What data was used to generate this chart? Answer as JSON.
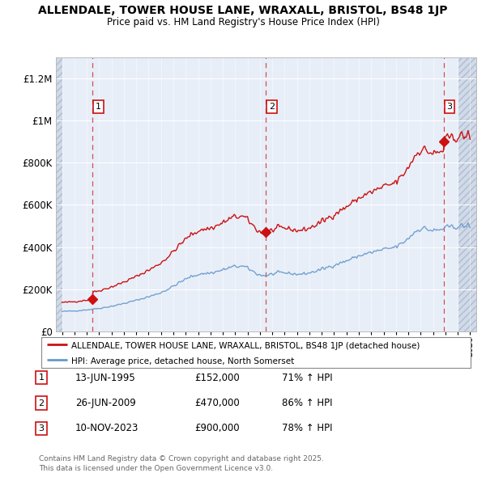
{
  "title": "ALLENDALE, TOWER HOUSE LANE, WRAXALL, BRISTOL, BS48 1JP",
  "subtitle": "Price paid vs. HM Land Registry's House Price Index (HPI)",
  "legend_line1": "ALLENDALE, TOWER HOUSE LANE, WRAXALL, BRISTOL, BS48 1JP (detached house)",
  "legend_line2": "HPI: Average price, detached house, North Somerset",
  "footer1": "Contains HM Land Registry data © Crown copyright and database right 2025.",
  "footer2": "This data is licensed under the Open Government Licence v3.0.",
  "sales": [
    {
      "num": 1,
      "date_label": "13-JUN-1995",
      "price_label": "£152,000",
      "hpi_label": "71% ↑ HPI",
      "year": 1995.458,
      "price": 152000
    },
    {
      "num": 2,
      "date_label": "26-JUN-2009",
      "price_label": "£470,000",
      "hpi_label": "86% ↑ HPI",
      "year": 2009.489,
      "price": 470000
    },
    {
      "num": 3,
      "date_label": "10-NOV-2023",
      "price_label": "£900,000",
      "hpi_label": "78% ↑ HPI",
      "year": 2023.858,
      "price": 900000
    }
  ],
  "ylim": [
    0,
    1300000
  ],
  "xlim": [
    1992.5,
    2026.5
  ],
  "yticks": [
    0,
    200000,
    400000,
    600000,
    800000,
    1000000,
    1200000
  ],
  "ytick_labels": [
    "£0",
    "£200K",
    "£400K",
    "£600K",
    "£800K",
    "£1M",
    "£1.2M"
  ],
  "red_line_color": "#cc1111",
  "blue_line_color": "#6699cc",
  "plot_bg": "#e8eef8",
  "hatch_bg": "#d0dae8"
}
